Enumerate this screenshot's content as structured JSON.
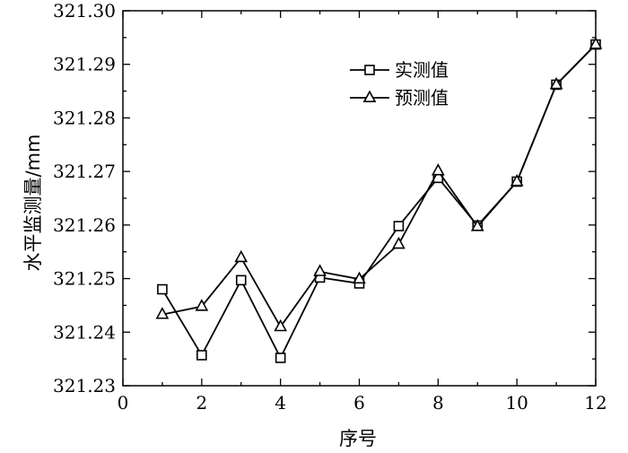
{
  "chart_data": {
    "type": "line",
    "xlabel": "序号",
    "ylabel": "水平监测量/mm",
    "xlim": [
      0,
      12
    ],
    "ylim": [
      321.23,
      321.3
    ],
    "x_ticks": [
      "0",
      "2",
      "4",
      "6",
      "8",
      "10",
      "12"
    ],
    "y_ticks": [
      "321.23",
      "321.24",
      "321.25",
      "321.26",
      "321.27",
      "321.28",
      "321.29",
      "321.30"
    ],
    "grid": false,
    "legend_position": "top-right",
    "x": [
      1,
      2,
      3,
      4,
      5,
      6,
      7,
      8,
      9,
      10,
      11,
      12
    ],
    "series": [
      {
        "name": "实测值",
        "marker": "square",
        "values": [
          321.248,
          321.2357,
          321.2497,
          321.2352,
          321.2502,
          321.2491,
          321.2598,
          321.2688,
          321.2599,
          321.2681,
          321.2862,
          321.2937
        ]
      },
      {
        "name": "预测值",
        "marker": "triangle",
        "values": [
          321.2433,
          321.2448,
          321.2539,
          321.241,
          321.2513,
          321.2499,
          321.2564,
          321.2701,
          321.2597,
          321.2681,
          321.2862,
          321.2937
        ]
      }
    ],
    "colors": {
      "line": "#000000",
      "marker_fill": "#ffffff"
    }
  }
}
